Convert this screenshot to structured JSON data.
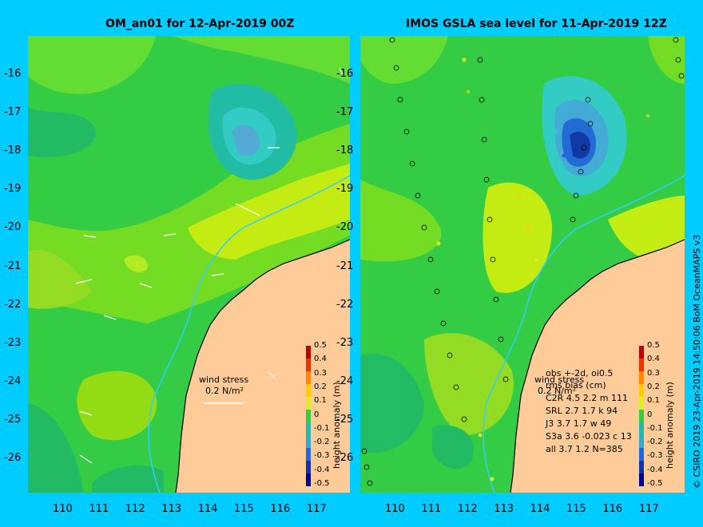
{
  "left_title": "OM_an01 for 12-Apr-2019 00Z",
  "right_title": "IMOS GSLA sea level  for 11-Apr-2019 12Z",
  "credit": "© CSIRO 2019   23-Apr-2019 14:50:06 BoM OceanMAPS v3",
  "lat_ticks": [
    "-16",
    "-17",
    "-18",
    "-19",
    "-20",
    "-21",
    "-22",
    "-23",
    "-24",
    "-25",
    "-26"
  ],
  "lon_ticks": [
    "110",
    "111",
    "112",
    "113",
    "114",
    "115",
    "116",
    "117"
  ],
  "colorbar": {
    "title": "height anomaly (m)",
    "ticks": [
      "0.5",
      "0.4",
      "0.3",
      "0.2",
      "0.1",
      "0",
      "-0.1",
      "-0.2",
      "-0.3",
      "-0.4",
      "-0.5"
    ]
  },
  "wind_stress": {
    "label": "wind stress",
    "scale": "0.2 N/m²"
  },
  "obs_stats": {
    "line1": "obs +-2d, oi0.5",
    "line2": "rms bias (cm)",
    "rows": [
      "C2R   4.5 2.2 m 111",
      "SRL    2.7 1.7 k 94",
      "J3     3.7 1.7 w 49",
      "S3a   3.6 -0.023 c 13",
      "all    3.7 1.2 N=385"
    ]
  },
  "colors": {
    "background": "#00ccff",
    "land": "#ffcc99",
    "sea_base": "#33cc44"
  }
}
